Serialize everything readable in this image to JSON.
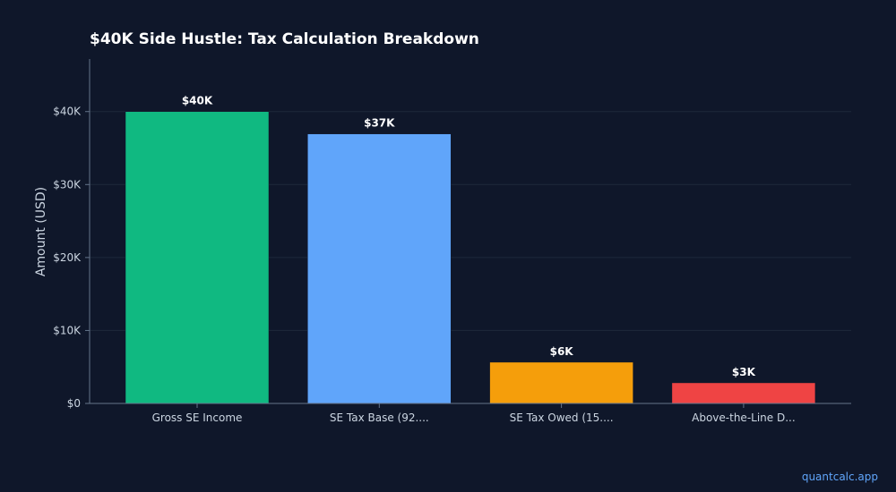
{
  "chart_data": {
    "type": "bar",
    "title": "$40K Side Hustle: Tax Calculation Breakdown",
    "ylabel": "Amount (USD)",
    "xlabel": "",
    "categories": [
      "Gross SE Income",
      "SE Tax Base (92....",
      "SE Tax Owed (15....",
      "Above-the-Line D..."
    ],
    "values": [
      40000,
      36940,
      5652,
      2826
    ],
    "data_labels": [
      "$40K",
      "$37K",
      "$6K",
      "$3K"
    ],
    "colors": [
      "#10b981",
      "#60a5fa",
      "#f59e0b",
      "#ef4444"
    ],
    "ylim": [
      0,
      47200
    ],
    "yticks": [
      0,
      10000,
      20000,
      30000,
      40000
    ],
    "ytick_labels": [
      "$0",
      "$10K",
      "$20K",
      "$30K",
      "$40K"
    ],
    "grid": true,
    "legend": false
  },
  "watermark": "quantcalc.app"
}
